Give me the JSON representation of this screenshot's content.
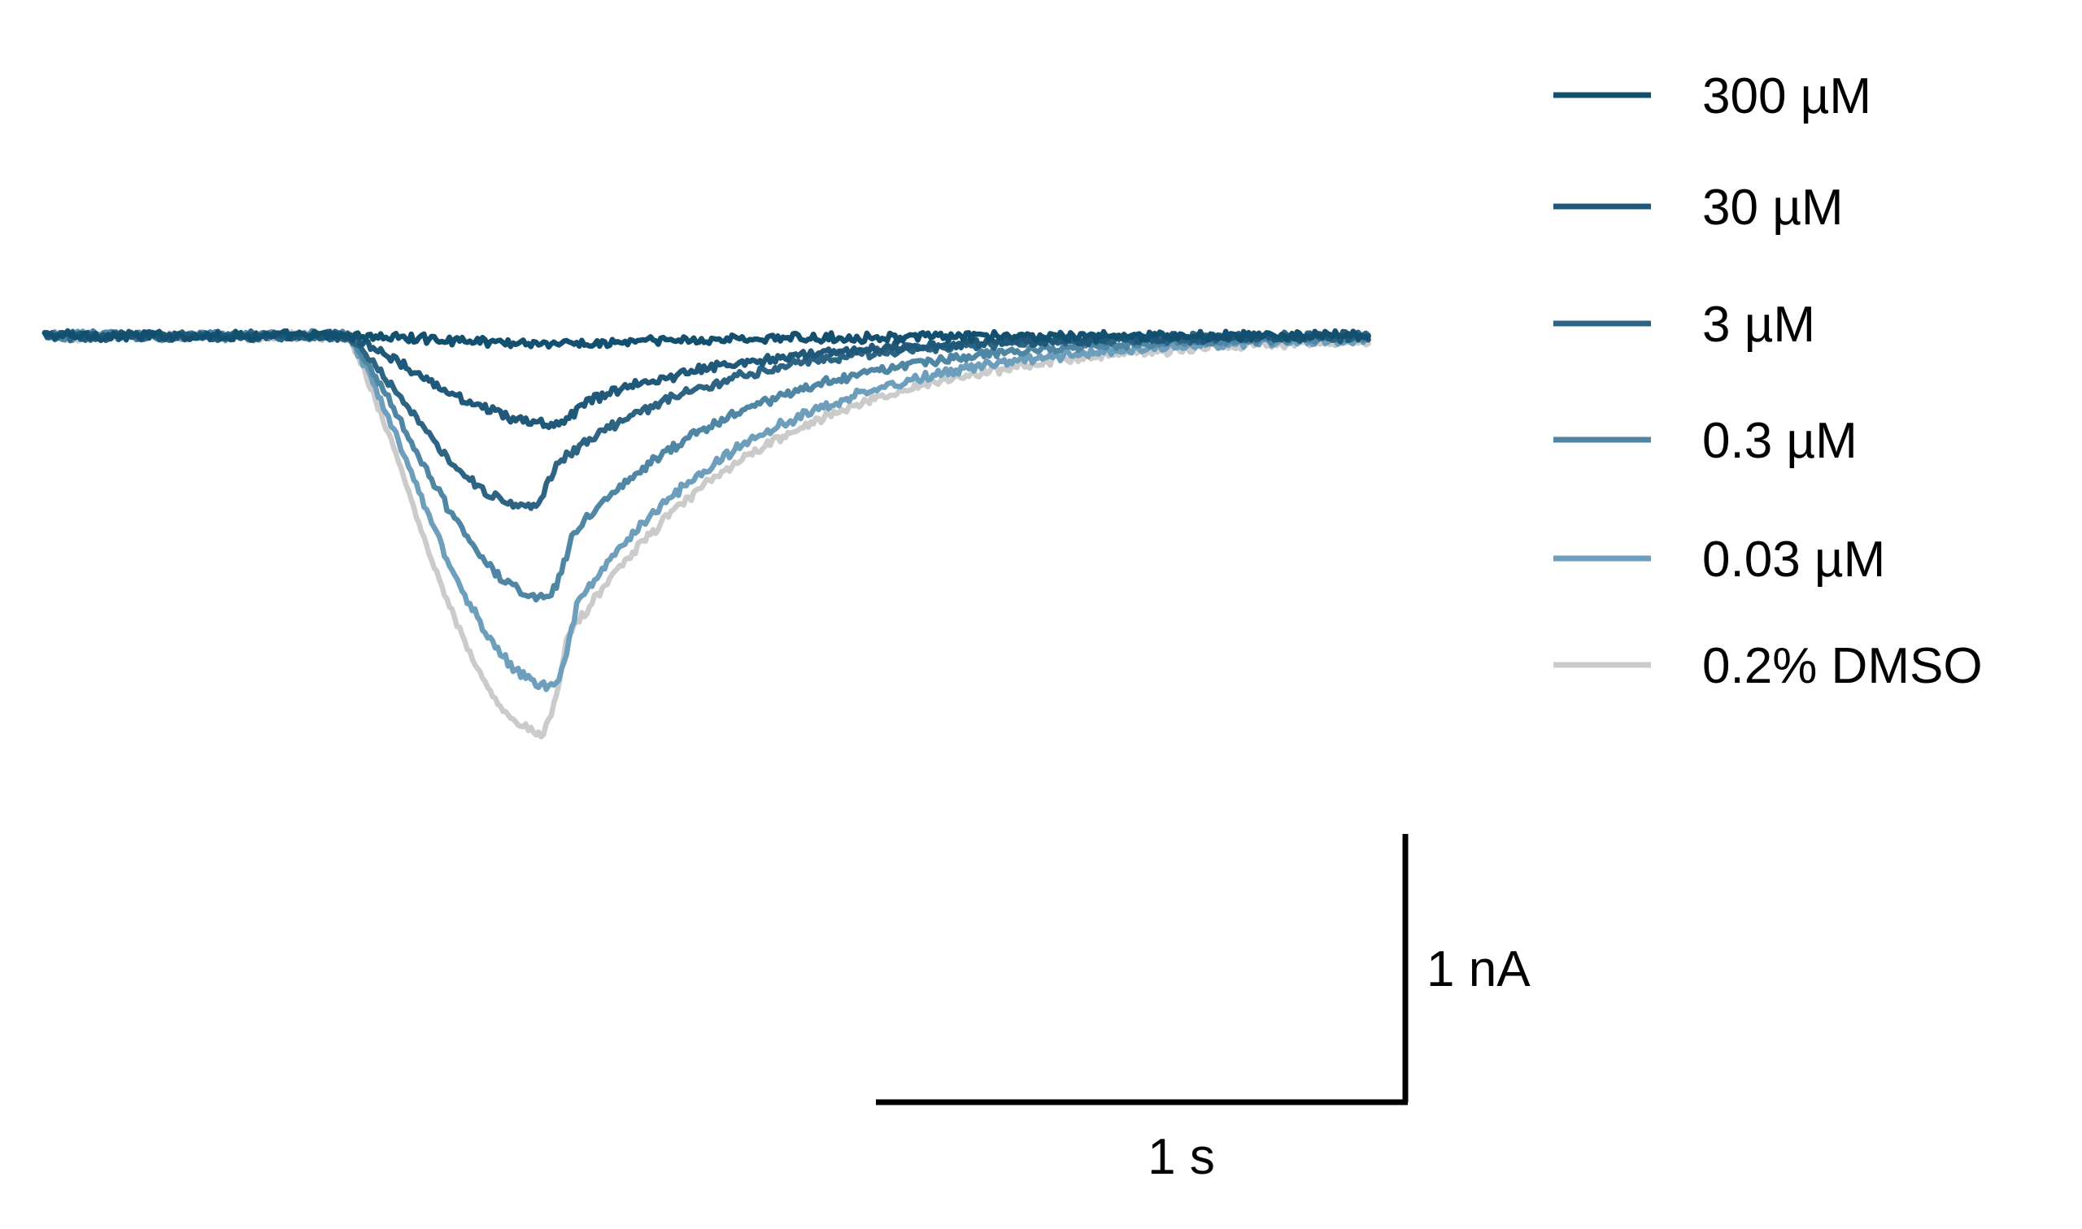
{
  "chart_data": {
    "type": "line",
    "title": "",
    "xlabel": "",
    "ylabel": "",
    "x_unit": "s",
    "y_unit": "nA",
    "x_range": [
      0,
      2.5
    ],
    "y_range": [
      -1.5,
      0.05
    ],
    "stimulus_onset_s": 0.57,
    "series": [
      {
        "name": "300 µM",
        "color": "#13506f",
        "peak_nA": -0.03,
        "peak_time_s": 1.05,
        "decay_tau_s": 0.35
      },
      {
        "name": "30 µM",
        "color": "#1f5878",
        "peak_nA": -0.33,
        "peak_time_s": 0.97,
        "decay_tau_s": 0.33
      },
      {
        "name": "3 µM",
        "color": "#2d6484",
        "peak_nA": -0.64,
        "peak_time_s": 0.92,
        "decay_tau_s": 0.3
      },
      {
        "name": "0.3 µM",
        "color": "#4f86a3",
        "peak_nA": -0.98,
        "peak_time_s": 0.95,
        "decay_tau_s": 0.33
      },
      {
        "name": "0.03 µM",
        "color": "#6d9fbd",
        "peak_nA": -1.31,
        "peak_time_s": 0.96,
        "decay_tau_s": 0.35
      },
      {
        "name": "0.2% DMSO",
        "color": "#cbcbcb",
        "peak_nA": -1.48,
        "peak_time_s": 0.94,
        "decay_tau_s": 0.37
      }
    ],
    "scale_bars": {
      "x": {
        "value": 1,
        "unit": "s",
        "label": "1 s"
      },
      "y": {
        "value": 1,
        "unit": "nA",
        "label": "1 nA"
      }
    },
    "legend_position": "top-right",
    "grid": false
  }
}
